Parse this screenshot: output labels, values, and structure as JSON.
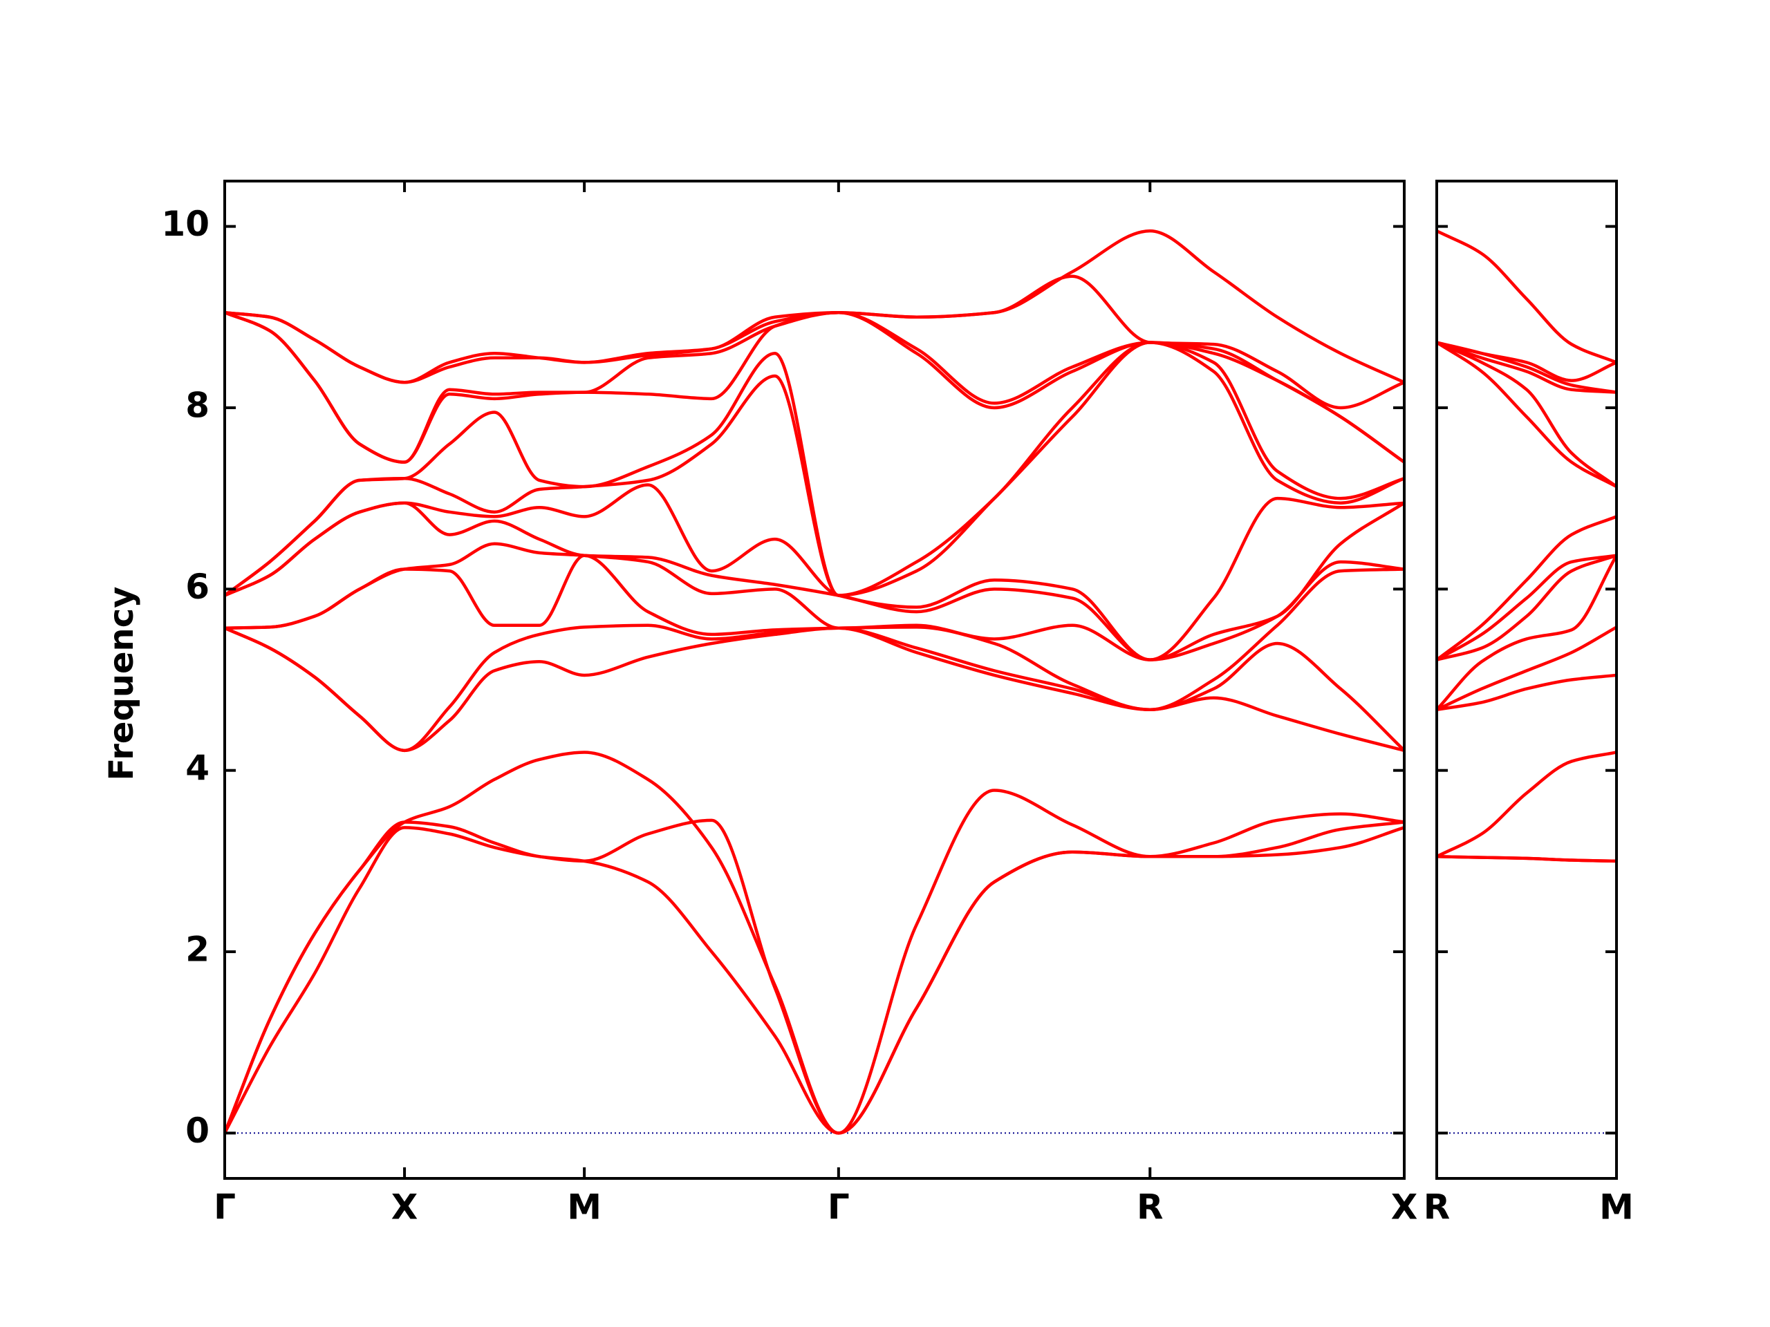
{
  "chart_data": [
    {
      "type": "line",
      "y_label": "Frequency",
      "color": "#ff0000",
      "reference_line": 0,
      "reference_color": "#00008b",
      "xlim": [
        0,
        3.28
      ],
      "ylim": [
        -0.5,
        10.5
      ],
      "xticks": [
        {
          "value": 0,
          "label": "Γ"
        },
        {
          "value": 0.5,
          "label": "X"
        },
        {
          "value": 1.0,
          "label": "M"
        },
        {
          "value": 1.707,
          "label": "Γ"
        },
        {
          "value": 2.573,
          "label": "R"
        },
        {
          "value": 3.28,
          "label": "X"
        }
      ],
      "yticks": [
        0,
        2,
        4,
        6,
        8,
        10
      ],
      "x": [
        0,
        0.125,
        0.25,
        0.375,
        0.5,
        0.625,
        0.75,
        0.875,
        1.0,
        1.177,
        1.354,
        1.53,
        1.707,
        1.924,
        2.14,
        2.357,
        2.573,
        2.75,
        2.927,
        3.103,
        3.28
      ],
      "series": [
        {
          "values": [
            0,
            0.95,
            1.76,
            2.7,
            3.37,
            3.3,
            3.15,
            3.05,
            3.0,
            2.77,
            2.0,
            1.07,
            0,
            1.38,
            2.77,
            3.1,
            3.05,
            3.05,
            3.07,
            3.15,
            3.37
          ]
        },
        {
          "values": [
            0,
            1.25,
            2.2,
            2.9,
            3.43,
            3.38,
            3.2,
            3.05,
            3.0,
            3.3,
            3.45,
            1.6,
            0,
            2.3,
            3.78,
            3.4,
            3.05,
            3.2,
            3.45,
            3.52,
            3.43
          ]
        },
        {
          "values": [
            0,
            1.25,
            2.2,
            2.9,
            3.43,
            3.6,
            3.9,
            4.12,
            4.2,
            3.9,
            3.15,
            1.63,
            0,
            1.38,
            2.77,
            3.1,
            3.05,
            3.05,
            3.15,
            3.35,
            3.43
          ]
        },
        {
          "values": [
            5.57,
            5.35,
            5.03,
            4.6,
            4.22,
            4.55,
            5.1,
            5.2,
            5.05,
            5.25,
            5.4,
            5.5,
            5.57,
            5.3,
            5.05,
            4.85,
            4.67,
            4.8,
            4.6,
            4.4,
            4.22
          ]
        },
        {
          "values": [
            5.57,
            5.35,
            5.03,
            4.6,
            4.22,
            4.7,
            5.3,
            5.5,
            5.58,
            5.6,
            5.45,
            5.52,
            5.57,
            5.35,
            5.1,
            4.9,
            4.67,
            4.9,
            5.4,
            4.9,
            4.22
          ]
        },
        {
          "values": [
            5.57,
            5.58,
            5.7,
            6.0,
            6.22,
            6.2,
            5.6,
            5.6,
            6.37,
            5.75,
            5.5,
            5.55,
            5.57,
            5.58,
            5.4,
            4.95,
            4.67,
            5.0,
            5.6,
            6.2,
            6.22
          ]
        },
        {
          "values": [
            5.57,
            5.58,
            5.7,
            6.0,
            6.22,
            6.27,
            6.5,
            6.4,
            6.37,
            6.3,
            5.95,
            6.0,
            5.57,
            5.6,
            5.45,
            5.6,
            5.22,
            5.4,
            5.7,
            6.3,
            6.22
          ]
        },
        {
          "values": [
            5.93,
            6.15,
            6.55,
            6.85,
            6.95,
            6.6,
            6.75,
            6.55,
            6.37,
            6.35,
            6.15,
            6.05,
            5.93,
            5.75,
            6.0,
            5.9,
            5.22,
            5.5,
            5.7,
            6.5,
            6.95
          ]
        },
        {
          "values": [
            5.93,
            6.15,
            6.55,
            6.85,
            6.95,
            6.85,
            6.8,
            6.9,
            6.8,
            7.15,
            6.2,
            6.55,
            5.93,
            5.8,
            6.1,
            6.0,
            5.22,
            5.9,
            7.0,
            6.9,
            6.95
          ]
        },
        {
          "values": [
            5.93,
            6.3,
            6.75,
            7.2,
            7.22,
            7.05,
            6.85,
            7.1,
            7.13,
            7.2,
            7.6,
            8.35,
            5.93,
            6.2,
            7.0,
            7.9,
            8.72,
            8.4,
            7.2,
            6.95,
            7.22
          ]
        },
        {
          "values": [
            5.93,
            6.3,
            6.75,
            7.2,
            7.22,
            7.6,
            7.95,
            7.2,
            7.13,
            7.35,
            7.7,
            8.6,
            5.93,
            6.3,
            7.0,
            8.0,
            8.72,
            8.5,
            7.3,
            7.0,
            7.22
          ]
        },
        {
          "values": [
            9.05,
            8.85,
            8.3,
            7.6,
            7.4,
            8.15,
            8.1,
            8.15,
            8.17,
            8.15,
            8.1,
            8.9,
            9.05,
            8.6,
            8.0,
            8.4,
            8.72,
            8.6,
            8.3,
            7.9,
            7.4
          ]
        },
        {
          "values": [
            9.05,
            8.85,
            8.3,
            7.6,
            7.4,
            8.2,
            8.15,
            8.17,
            8.17,
            8.55,
            8.6,
            8.9,
            9.05,
            8.65,
            8.05,
            8.45,
            8.72,
            8.65,
            8.3,
            7.9,
            7.4
          ]
        },
        {
          "values": [
            9.05,
            9.0,
            8.75,
            8.45,
            8.28,
            8.45,
            8.55,
            8.55,
            8.5,
            8.58,
            8.65,
            8.95,
            9.05,
            9.0,
            9.05,
            9.45,
            8.72,
            8.7,
            8.4,
            8.0,
            8.28
          ]
        },
        {
          "values": [
            9.05,
            9.0,
            8.75,
            8.45,
            8.28,
            8.5,
            8.6,
            8.55,
            8.5,
            8.6,
            8.65,
            9.0,
            9.05,
            9.0,
            9.05,
            9.5,
            9.95,
            9.5,
            9.0,
            8.6,
            8.28
          ]
        }
      ]
    },
    {
      "type": "line",
      "color": "#ff0000",
      "reference_line": 0,
      "reference_color": "#00008b",
      "xlim": [
        0,
        0.5
      ],
      "ylim": [
        -0.5,
        10.5
      ],
      "xticks": [
        {
          "value": 0,
          "label": "R"
        },
        {
          "value": 0.5,
          "label": "M"
        }
      ],
      "x": [
        0,
        0.125,
        0.25,
        0.375,
        0.5
      ],
      "series": [
        {
          "values": [
            3.05,
            3.04,
            3.03,
            3.01,
            3.0
          ]
        },
        {
          "values": [
            3.05,
            3.04,
            3.03,
            3.01,
            3.0
          ]
        },
        {
          "values": [
            3.05,
            3.3,
            3.75,
            4.1,
            4.2
          ]
        },
        {
          "values": [
            4.67,
            4.75,
            4.9,
            5.0,
            5.05
          ]
        },
        {
          "values": [
            4.67,
            4.9,
            5.1,
            5.3,
            5.58
          ]
        },
        {
          "values": [
            4.67,
            5.2,
            5.45,
            5.55,
            6.37
          ]
        },
        {
          "values": [
            5.22,
            5.35,
            5.7,
            6.2,
            6.37
          ]
        },
        {
          "values": [
            5.22,
            5.5,
            5.9,
            6.3,
            6.37
          ]
        },
        {
          "values": [
            5.22,
            5.6,
            6.1,
            6.6,
            6.8
          ]
        },
        {
          "values": [
            8.72,
            8.4,
            7.9,
            7.4,
            7.13
          ]
        },
        {
          "values": [
            8.72,
            8.5,
            8.2,
            7.5,
            7.13
          ]
        },
        {
          "values": [
            8.72,
            8.55,
            8.4,
            8.2,
            8.17
          ]
        },
        {
          "values": [
            8.72,
            8.6,
            8.45,
            8.25,
            8.17
          ]
        },
        {
          "values": [
            8.72,
            8.6,
            8.5,
            8.3,
            8.5
          ]
        },
        {
          "values": [
            9.95,
            9.7,
            9.2,
            8.7,
            8.5
          ]
        }
      ]
    }
  ]
}
